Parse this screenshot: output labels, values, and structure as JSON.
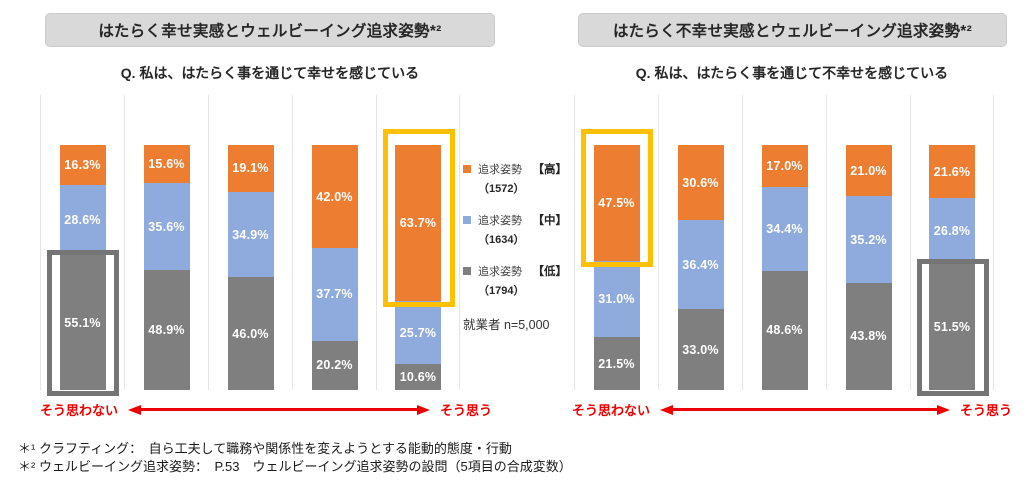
{
  "colors": {
    "high": "#ED7D31",
    "mid": "#8FAADC",
    "low": "#7F7F7F",
    "highlight_orange": "#FFC000",
    "highlight_gray": "#757575",
    "axis_red": "#EE0000",
    "title_bg": "#D9D9D9",
    "grid": "#E5E5E5"
  },
  "legend": {
    "items": [
      {
        "label": "追求姿勢",
        "level": "【高】",
        "count": "（1572）",
        "color_key": "high"
      },
      {
        "label": "追求姿勢",
        "level": "【中】",
        "count": "（1634）",
        "color_key": "mid"
      },
      {
        "label": "追求姿勢",
        "level": "【低】",
        "count": "（1794）",
        "color_key": "low"
      }
    ],
    "note": "就業者 n=5,000"
  },
  "footnotes": [
    "＊¹ クラフティング：　自ら工夫して職務や関係性を変えようとする能動的態度・行動",
    "＊² ウェルビーイング追求姿勢：　P.53　ウェルビーイング追求姿勢の設問（5項目の合成変数）"
  ],
  "chart_data": [
    {
      "type": "bar",
      "stacked": true,
      "unit": "%",
      "ylim": [
        0,
        100
      ],
      "grid": false,
      "title": "はたらく幸せ実感とウェルビーイング追求姿勢*²",
      "question": "Q. 私は、はたらく事を通じて幸せを感じている",
      "x_axis": {
        "left_label": "そう思わない",
        "right_label": "そう思う"
      },
      "series": [
        {
          "name": "追求姿勢【高】（1572）",
          "color_key": "high",
          "values": [
            16.3,
            15.6,
            19.1,
            42.0,
            63.7
          ]
        },
        {
          "name": "追求姿勢【中】（1634）",
          "color_key": "mid",
          "values": [
            28.6,
            35.6,
            34.9,
            37.7,
            25.7
          ]
        },
        {
          "name": "追求姿勢【低】（1794）",
          "color_key": "low",
          "values": [
            55.1,
            48.9,
            46.0,
            20.2,
            10.6
          ]
        }
      ],
      "highlights": [
        {
          "bar": 0,
          "series": 2,
          "color_key": "highlight_gray"
        },
        {
          "bar": 4,
          "series": 0,
          "color_key": "highlight_orange"
        }
      ]
    },
    {
      "type": "bar",
      "stacked": true,
      "unit": "%",
      "ylim": [
        0,
        100
      ],
      "grid": false,
      "title": "はたらく不幸せ実感とウェルビーイング追求姿勢*²",
      "question": "Q. 私は、はたらく事を通じて不幸せを感じている",
      "x_axis": {
        "left_label": "そう思わない",
        "right_label": "そう思う"
      },
      "series": [
        {
          "name": "追求姿勢【高】（1572）",
          "color_key": "high",
          "values": [
            47.5,
            30.6,
            17.0,
            21.0,
            21.6
          ]
        },
        {
          "name": "追求姿勢【中】（1634）",
          "color_key": "mid",
          "values": [
            31.0,
            36.4,
            34.4,
            35.2,
            26.8
          ]
        },
        {
          "name": "追求姿勢【低】（1794）",
          "color_key": "low",
          "values": [
            21.5,
            33.0,
            48.6,
            43.8,
            51.5
          ]
        }
      ],
      "highlights": [
        {
          "bar": 0,
          "series": 0,
          "color_key": "highlight_orange"
        },
        {
          "bar": 4,
          "series": 2,
          "color_key": "highlight_gray"
        }
      ]
    }
  ]
}
